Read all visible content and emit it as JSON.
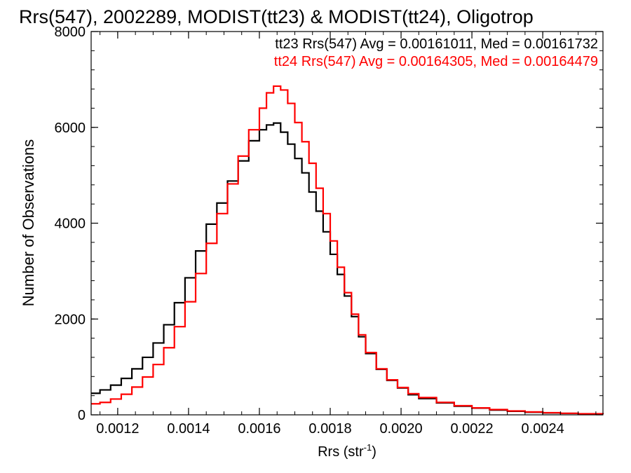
{
  "chart_data": {
    "type": "line",
    "title": "Rrs(547), 2002289, MODIST(tt23) & MODIST(tt24), Oligotrop",
    "xlabel": "Rrs (str",
    "xlabel_sup": "-1",
    "xlabel_close": ")",
    "ylabel": "Number of Observations",
    "xlim": [
      0.001125,
      0.00257
    ],
    "ylim": [
      0,
      8000
    ],
    "x_ticks": [
      {
        "value": 0.0012,
        "label": "0.0012"
      },
      {
        "value": 0.0014,
        "label": "0.0014"
      },
      {
        "value": 0.0016,
        "label": "0.0016"
      },
      {
        "value": 0.0018,
        "label": "0.0018"
      },
      {
        "value": 0.002,
        "label": "0.0020"
      },
      {
        "value": 0.0022,
        "label": "0.0022"
      },
      {
        "value": 0.0024,
        "label": "0.0024"
      }
    ],
    "y_ticks": [
      {
        "value": 0,
        "label": "0"
      },
      {
        "value": 2000,
        "label": "2000"
      },
      {
        "value": 4000,
        "label": "4000"
      },
      {
        "value": 6000,
        "label": "6000"
      },
      {
        "value": 8000,
        "label": "8000"
      }
    ],
    "x_minor_step": 5e-05,
    "y_minor_step": 400,
    "annotations": [
      {
        "text": "tt23 Rrs(547) Avg = 0.00161011, Med = 0.00161732",
        "color": "#000000"
      },
      {
        "text": "tt24 Rrs(547) Avg = 0.00164305, Med = 0.00164479",
        "color": "#ff0000"
      }
    ],
    "series": [
      {
        "color": "#000000",
        "x": [
          0.001125,
          0.00115,
          0.00118,
          0.00121,
          0.00124,
          0.00127,
          0.0013,
          0.00133,
          0.00136,
          0.00139,
          0.00142,
          0.00145,
          0.00148,
          0.00151,
          0.00154,
          0.00157,
          0.0016,
          0.00162,
          0.00164,
          0.00166,
          0.00168,
          0.0017,
          0.00172,
          0.00174,
          0.00176,
          0.00178,
          0.0018,
          0.00182,
          0.00184,
          0.00186,
          0.00188,
          0.0019,
          0.00193,
          0.00196,
          0.00199,
          0.00202,
          0.00205,
          0.0021,
          0.00215,
          0.0022,
          0.00225,
          0.0023,
          0.00235,
          0.0024,
          0.00245,
          0.0025,
          0.00257
        ],
        "y": [
          450,
          520,
          620,
          760,
          960,
          1200,
          1500,
          1880,
          2340,
          2860,
          3420,
          3980,
          4420,
          4880,
          5300,
          5720,
          5950,
          6050,
          6090,
          5900,
          5650,
          5350,
          5050,
          4650,
          4250,
          3820,
          3350,
          2930,
          2480,
          2050,
          1630,
          1280,
          950,
          720,
          560,
          420,
          340,
          250,
          180,
          140,
          100,
          75,
          55,
          40,
          30,
          20,
          15
        ]
      },
      {
        "color": "#ff0000",
        "x": [
          0.001125,
          0.00115,
          0.00118,
          0.00121,
          0.00124,
          0.00127,
          0.0013,
          0.00133,
          0.00136,
          0.00139,
          0.00142,
          0.00145,
          0.00148,
          0.00151,
          0.00154,
          0.00157,
          0.0016,
          0.00162,
          0.00164,
          0.00166,
          0.00168,
          0.0017,
          0.00172,
          0.00174,
          0.00176,
          0.00178,
          0.0018,
          0.00182,
          0.00184,
          0.00186,
          0.00188,
          0.0019,
          0.00193,
          0.00196,
          0.00199,
          0.00202,
          0.00205,
          0.0021,
          0.00215,
          0.0022,
          0.00225,
          0.0023,
          0.00235,
          0.0024,
          0.00245,
          0.0025,
          0.00257
        ],
        "y": [
          230,
          260,
          330,
          430,
          580,
          790,
          1050,
          1400,
          1840,
          2360,
          2950,
          3580,
          4200,
          4820,
          5400,
          5950,
          6400,
          6720,
          6860,
          6780,
          6500,
          6100,
          5700,
          5250,
          4730,
          4200,
          3630,
          3080,
          2550,
          2100,
          1670,
          1300,
          960,
          730,
          570,
          440,
          360,
          260,
          190,
          145,
          110,
          80,
          60,
          45,
          32,
          22,
          15
        ]
      }
    ]
  }
}
